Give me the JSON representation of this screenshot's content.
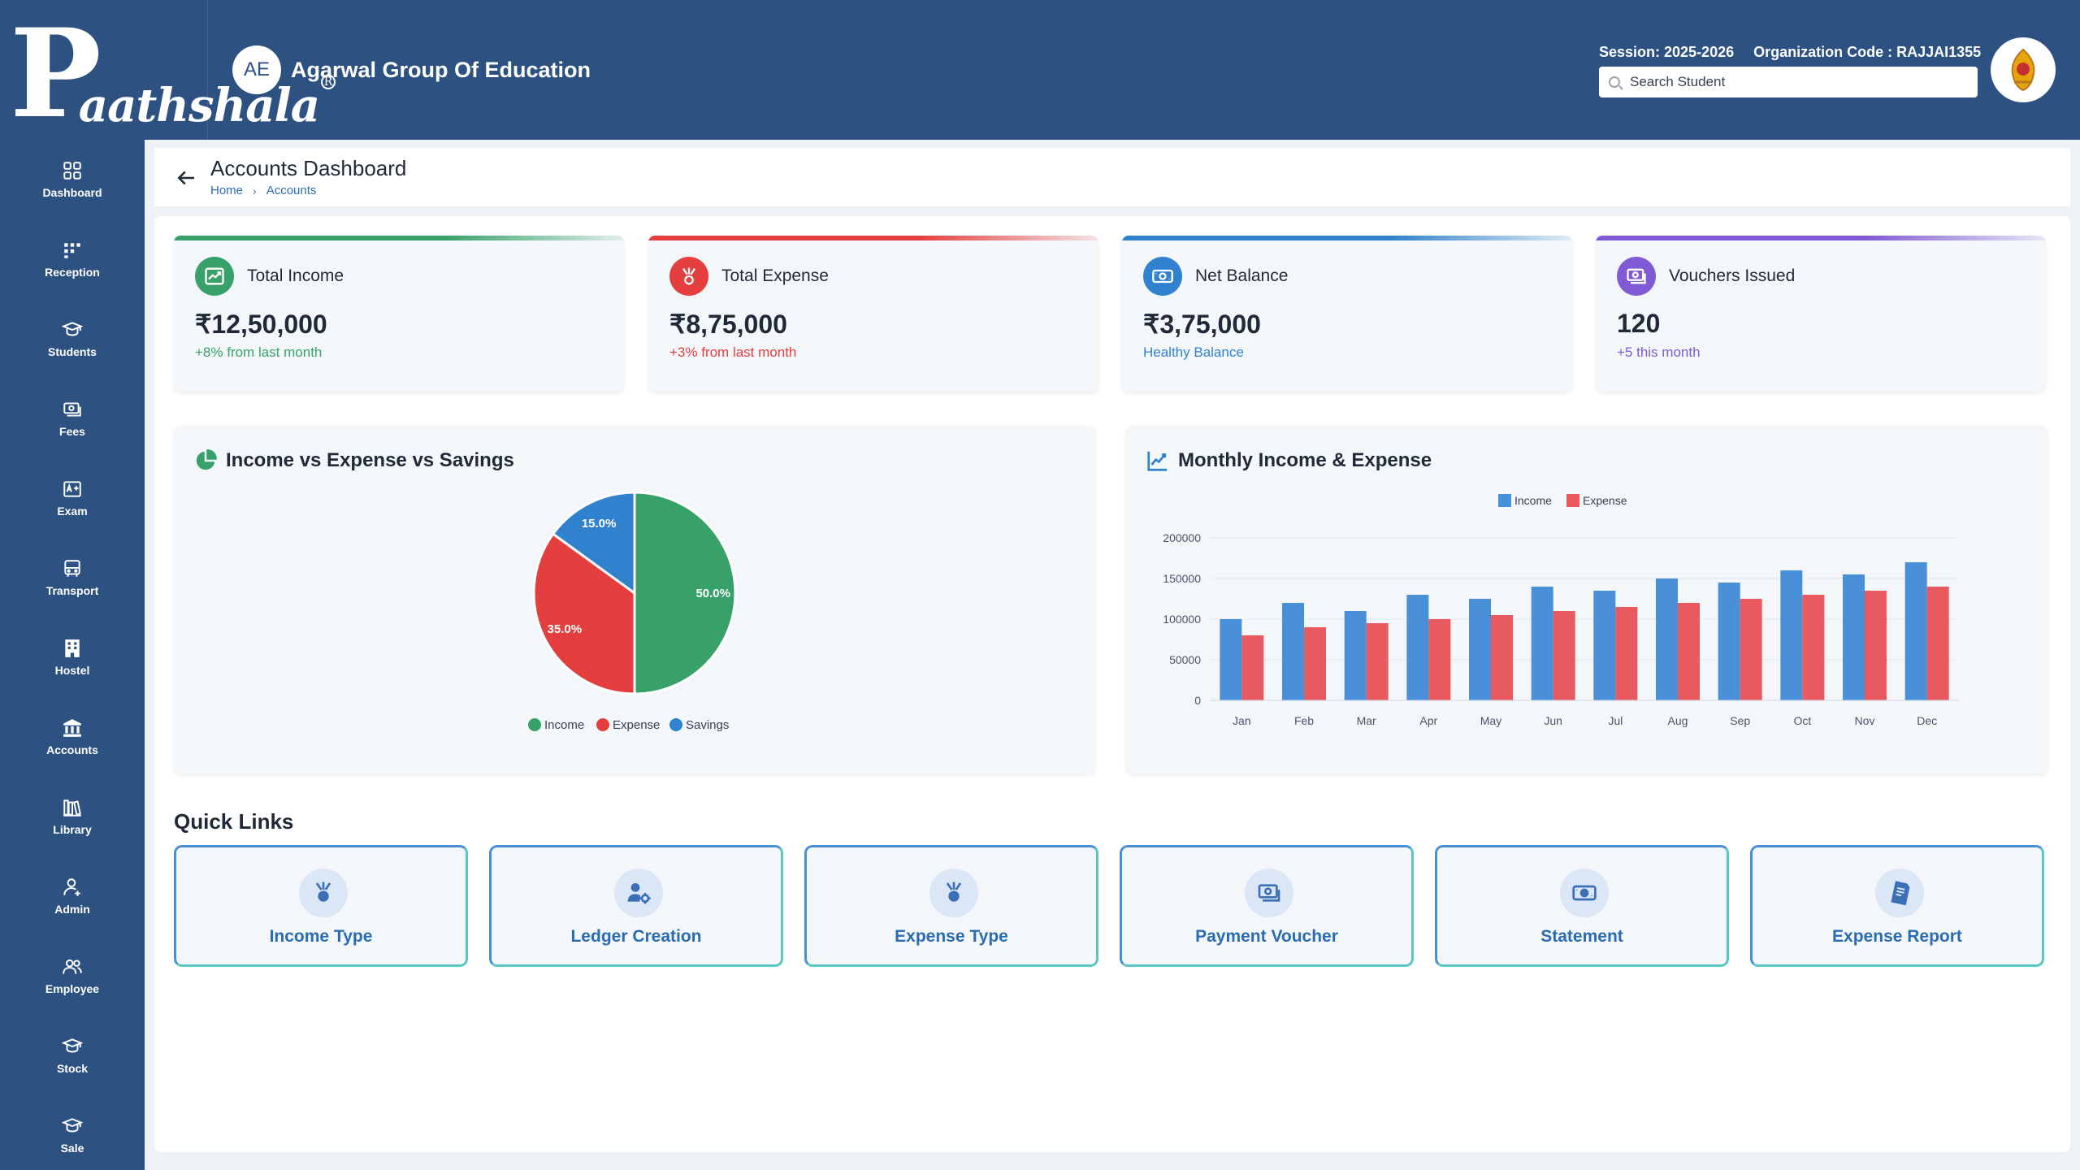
{
  "brand": {
    "logo_initial": "P",
    "logo_rest": "aathshala",
    "logo_reg": "R"
  },
  "org": {
    "initials": "AE",
    "name": "Agarwal Group Of Education"
  },
  "header": {
    "session": "Session: 2025-2026",
    "org_code": "Organization Code : RAJJAI1355",
    "search_placeholder": "Search Student"
  },
  "sidebar": {
    "items": [
      {
        "label": "Dashboard",
        "icon": "dashboard-icon"
      },
      {
        "label": "Reception",
        "icon": "reception-icon"
      },
      {
        "label": "Students",
        "icon": "students-icon"
      },
      {
        "label": "Fees",
        "icon": "fees-icon"
      },
      {
        "label": "Exam",
        "icon": "exam-icon"
      },
      {
        "label": "Transport",
        "icon": "transport-icon"
      },
      {
        "label": "Hostel",
        "icon": "hostel-icon"
      },
      {
        "label": "Accounts",
        "icon": "accounts-icon"
      },
      {
        "label": "Library",
        "icon": "library-icon"
      },
      {
        "label": "Admin",
        "icon": "admin-icon"
      },
      {
        "label": "Employee",
        "icon": "employee-icon"
      },
      {
        "label": "Stock",
        "icon": "stock-icon"
      },
      {
        "label": "Sale",
        "icon": "sale-icon"
      }
    ]
  },
  "page": {
    "title": "Accounts Dashboard",
    "breadcrumb": [
      "Home",
      "Accounts"
    ]
  },
  "stats": [
    {
      "label": "Total Income",
      "value": "₹12,50,000",
      "sub": "+8% from last month",
      "color": "#38a169",
      "icon": "trending-up-icon"
    },
    {
      "label": "Total Expense",
      "value": "₹8,75,000",
      "sub": "+3% from last month",
      "color": "#e53e3e",
      "icon": "expense-icon"
    },
    {
      "label": "Net Balance",
      "value": "₹3,75,000",
      "sub": "Healthy Balance",
      "color": "#3182ce",
      "icon": "money-icon"
    },
    {
      "label": "Vouchers Issued",
      "value": "120",
      "sub": "+5 this month",
      "color": "#805ad5",
      "icon": "voucher-icon"
    }
  ],
  "pie_panel": {
    "title": "Income vs Expense vs Savings"
  },
  "bar_panel": {
    "title": "Monthly Income & Expense"
  },
  "chart_data": [
    {
      "type": "pie",
      "title": "Income vs Expense vs Savings",
      "labels": [
        "Income",
        "Expense",
        "Savings"
      ],
      "values": [
        50.0,
        35.0,
        15.0
      ],
      "value_labels": [
        "50.0%",
        "35.0%",
        "15.0%"
      ],
      "colors": [
        "#38a169",
        "#e53e3e",
        "#3182ce"
      ],
      "legend": "bottom"
    },
    {
      "type": "bar",
      "title": "Monthly Income & Expense",
      "categories": [
        "Jan",
        "Feb",
        "Mar",
        "Apr",
        "May",
        "Jun",
        "Jul",
        "Aug",
        "Sep",
        "Oct",
        "Nov",
        "Dec"
      ],
      "series": [
        {
          "name": "Income",
          "color": "#4a90d9",
          "values": [
            100000,
            120000,
            110000,
            130000,
            125000,
            140000,
            135000,
            150000,
            145000,
            160000,
            155000,
            170000
          ]
        },
        {
          "name": "Expense",
          "color": "#e85a5f",
          "values": [
            80000,
            90000,
            95000,
            100000,
            105000,
            110000,
            115000,
            120000,
            125000,
            130000,
            135000,
            140000
          ]
        }
      ],
      "ylim": [
        0,
        200000
      ],
      "yticks": [
        "0",
        "50000",
        "100000",
        "150000",
        "200000"
      ],
      "grid": true,
      "legend": "top"
    }
  ],
  "quick_links": {
    "title": "Quick Links",
    "items": [
      {
        "label": "Income Type",
        "icon": "income-type-icon"
      },
      {
        "label": "Ledger Creation",
        "icon": "ledger-icon"
      },
      {
        "label": "Expense Type",
        "icon": "expense-type-icon"
      },
      {
        "label": "Payment Voucher",
        "icon": "payment-voucher-icon"
      },
      {
        "label": "Statement",
        "icon": "statement-icon"
      },
      {
        "label": "Expense Report",
        "icon": "expense-report-icon"
      }
    ]
  }
}
